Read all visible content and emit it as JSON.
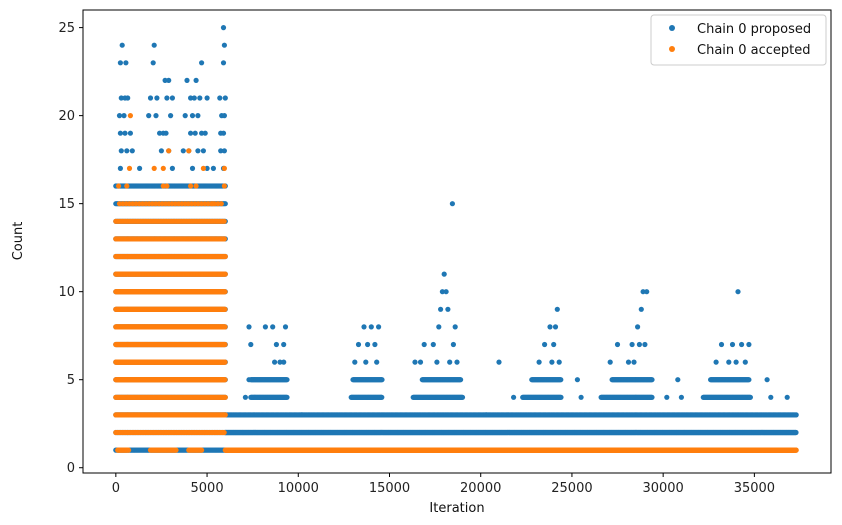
{
  "chart_data": {
    "type": "scatter",
    "title": "",
    "xlabel": "Iteration",
    "ylabel": "Count",
    "xlim": [
      -1800,
      39200
    ],
    "ylim": [
      -0.3,
      26
    ],
    "xticks": [
      0,
      5000,
      10000,
      15000,
      20000,
      25000,
      30000,
      35000
    ],
    "yticks": [
      0,
      5,
      10,
      15,
      20,
      25
    ],
    "legend_position": "top-right",
    "grid": false,
    "series": [
      {
        "name": "Chain 0 proposed",
        "color": "#1f77b4",
        "bands": [
          {
            "x0": 0,
            "x1": 6000,
            "y0": 1,
            "y1": 16,
            "step": 60
          },
          {
            "x0": 6000,
            "x1": 37300,
            "y0": 2,
            "y1": 2,
            "step": 18
          },
          {
            "x0": 6000,
            "x1": 37300,
            "y0": 3,
            "y1": 3,
            "step": 70
          }
        ],
        "segments": [
          {
            "x0": 7400,
            "x1": 9400,
            "y": 4
          },
          {
            "x0": 7400,
            "x1": 9400,
            "y": 5
          },
          {
            "x0": 12900,
            "x1": 14600,
            "y": 4
          },
          {
            "x0": 13000,
            "x1": 14600,
            "y": 5
          },
          {
            "x0": 16300,
            "x1": 19000,
            "y": 4
          },
          {
            "x0": 16800,
            "x1": 18900,
            "y": 5
          },
          {
            "x0": 22300,
            "x1": 24400,
            "y": 4
          },
          {
            "x0": 22800,
            "x1": 24400,
            "y": 5
          },
          {
            "x0": 26600,
            "x1": 29400,
            "y": 4
          },
          {
            "x0": 27200,
            "x1": 29400,
            "y": 5
          },
          {
            "x0": 32200,
            "x1": 34800,
            "y": 4
          },
          {
            "x0": 32600,
            "x1": 34700,
            "y": 5
          }
        ],
        "points": [
          [
            250,
            23
          ],
          [
            350,
            24
          ],
          [
            550,
            23
          ],
          [
            300,
            21
          ],
          [
            500,
            21
          ],
          [
            650,
            21
          ],
          [
            200,
            20
          ],
          [
            450,
            20
          ],
          [
            250,
            19
          ],
          [
            500,
            19
          ],
          [
            800,
            19
          ],
          [
            300,
            18
          ],
          [
            600,
            18
          ],
          [
            900,
            18
          ],
          [
            250,
            17
          ],
          [
            1300,
            17
          ],
          [
            2100,
            24
          ],
          [
            2050,
            23
          ],
          [
            1900,
            21
          ],
          [
            2250,
            21
          ],
          [
            1800,
            20
          ],
          [
            2200,
            20
          ],
          [
            2400,
            19
          ],
          [
            2600,
            19
          ],
          [
            2750,
            19
          ],
          [
            2700,
            22
          ],
          [
            2900,
            22
          ],
          [
            2800,
            21
          ],
          [
            3100,
            21
          ],
          [
            3000,
            20
          ],
          [
            2500,
            18
          ],
          [
            2900,
            18
          ],
          [
            3100,
            17
          ],
          [
            3900,
            22
          ],
          [
            4400,
            22
          ],
          [
            4700,
            23
          ],
          [
            4100,
            21
          ],
          [
            4300,
            21
          ],
          [
            4600,
            21
          ],
          [
            5000,
            21
          ],
          [
            3800,
            20
          ],
          [
            4200,
            20
          ],
          [
            4500,
            20
          ],
          [
            4100,
            19
          ],
          [
            4350,
            19
          ],
          [
            4700,
            19
          ],
          [
            4900,
            19
          ],
          [
            3700,
            18
          ],
          [
            4000,
            18
          ],
          [
            4500,
            18
          ],
          [
            4800,
            18
          ],
          [
            4200,
            17
          ],
          [
            5000,
            17
          ],
          [
            5350,
            17
          ],
          [
            5900,
            25
          ],
          [
            5950,
            24
          ],
          [
            5900,
            23
          ],
          [
            5700,
            21
          ],
          [
            6000,
            21
          ],
          [
            5800,
            20
          ],
          [
            5950,
            20
          ],
          [
            5750,
            19
          ],
          [
            5900,
            19
          ],
          [
            5750,
            18
          ],
          [
            5950,
            18
          ],
          [
            5900,
            17
          ],
          [
            7400,
            7
          ],
          [
            7300,
            8
          ],
          [
            8200,
            8
          ],
          [
            8700,
            6
          ],
          [
            8800,
            7
          ],
          [
            8600,
            8
          ],
          [
            9000,
            6
          ],
          [
            9200,
            7
          ],
          [
            9300,
            8
          ],
          [
            9200,
            6
          ],
          [
            13300,
            7
          ],
          [
            13600,
            8
          ],
          [
            13700,
            6
          ],
          [
            13800,
            7
          ],
          [
            14000,
            8
          ],
          [
            14200,
            7
          ],
          [
            14300,
            6
          ],
          [
            14400,
            8
          ],
          [
            13100,
            6
          ],
          [
            16400,
            6
          ],
          [
            16700,
            6
          ],
          [
            16900,
            7
          ],
          [
            17400,
            7
          ],
          [
            17600,
            6
          ],
          [
            17700,
            8
          ],
          [
            17900,
            10
          ],
          [
            18000,
            11
          ],
          [
            18100,
            10
          ],
          [
            18200,
            9
          ],
          [
            17800,
            9
          ],
          [
            18450,
            15
          ],
          [
            18600,
            8
          ],
          [
            18500,
            7
          ],
          [
            18700,
            6
          ],
          [
            18300,
            6
          ],
          [
            21000,
            6
          ],
          [
            23200,
            6
          ],
          [
            23500,
            7
          ],
          [
            23800,
            8
          ],
          [
            24000,
            7
          ],
          [
            24100,
            8
          ],
          [
            24200,
            9
          ],
          [
            24300,
            6
          ],
          [
            23900,
            6
          ],
          [
            25300,
            5
          ],
          [
            27100,
            6
          ],
          [
            27500,
            7
          ],
          [
            28100,
            6
          ],
          [
            28300,
            7
          ],
          [
            28600,
            8
          ],
          [
            28700,
            7
          ],
          [
            28800,
            9
          ],
          [
            28900,
            10
          ],
          [
            29100,
            10
          ],
          [
            29000,
            7
          ],
          [
            28400,
            6
          ],
          [
            30800,
            5
          ],
          [
            32900,
            6
          ],
          [
            33200,
            7
          ],
          [
            33600,
            6
          ],
          [
            33800,
            7
          ],
          [
            34000,
            6
          ],
          [
            34100,
            10
          ],
          [
            34300,
            7
          ],
          [
            34500,
            6
          ],
          [
            34700,
            7
          ],
          [
            35700,
            5
          ],
          [
            35900,
            4
          ],
          [
            36800,
            4
          ],
          [
            7100,
            4
          ],
          [
            7300,
            5
          ],
          [
            10200,
            3
          ],
          [
            21800,
            4
          ],
          [
            30200,
            4
          ],
          [
            31000,
            4
          ],
          [
            25500,
            4
          ],
          [
            20300,
            3
          ]
        ]
      },
      {
        "name": "Chain 0 accepted",
        "color": "#ff7f0e",
        "bands": [
          {
            "x0": 0,
            "x1": 6000,
            "y0": 5,
            "y1": 10,
            "step": 22
          },
          {
            "x0": 0,
            "x1": 6000,
            "y0": 3,
            "y1": 4,
            "step": 50
          },
          {
            "x0": 0,
            "x1": 6000,
            "y0": 2,
            "y1": 2,
            "step": 90
          },
          {
            "x0": 6000,
            "x1": 37300,
            "y0": 1,
            "y1": 1,
            "step": 14
          }
        ],
        "segments": [
          {
            "x0": 0,
            "x1": 6000,
            "y": 11,
            "step": 40
          },
          {
            "x0": 0,
            "x1": 6000,
            "y": 12,
            "step": 40
          },
          {
            "x0": 0,
            "x1": 6000,
            "y": 13,
            "step": 70
          },
          {
            "x0": 0,
            "x1": 6000,
            "y": 14,
            "step": 90
          },
          {
            "x0": 200,
            "x1": 5900,
            "y": 15,
            "step": 180
          },
          {
            "x0": 100,
            "x1": 700,
            "y": 1,
            "step": 40
          },
          {
            "x0": 1900,
            "x1": 3300,
            "y": 1,
            "step": 50
          },
          {
            "x0": 4000,
            "x1": 4700,
            "y": 1,
            "step": 50
          }
        ],
        "points": [
          [
            150,
            16
          ],
          [
            600,
            16
          ],
          [
            2600,
            16
          ],
          [
            2800,
            16
          ],
          [
            4100,
            16
          ],
          [
            4400,
            16
          ],
          [
            5950,
            16
          ],
          [
            800,
            20
          ],
          [
            750,
            17
          ],
          [
            2100,
            17
          ],
          [
            2600,
            17
          ],
          [
            4800,
            17
          ],
          [
            5950,
            17
          ],
          [
            2900,
            18
          ],
          [
            4000,
            18
          ],
          [
            5300,
            15
          ]
        ]
      }
    ]
  }
}
